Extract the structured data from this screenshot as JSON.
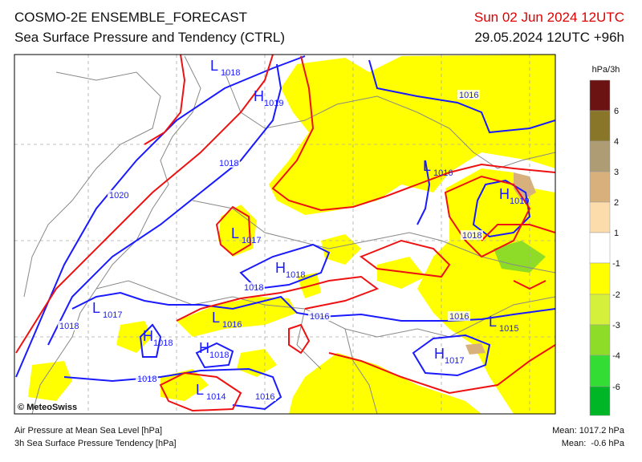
{
  "header": {
    "title": "COSMO-2E ENSEMBLE_FORECAST",
    "subtitle": "Sea Surface Pressure and Tendency (CTRL)",
    "valid_time": "Sun 02 Jun 2024 12UTC",
    "run": "29.05.2024 12UTC +96h"
  },
  "map": {
    "copyright": "© MeteoSwiss",
    "labels": [
      {
        "symbol": "L",
        "value": "1018"
      },
      {
        "symbol": "H",
        "value": "1019"
      },
      {
        "value": "1016"
      },
      {
        "value": "1018"
      },
      {
        "symbol": "L",
        "value": "1016"
      },
      {
        "value": "1020"
      },
      {
        "symbol": "H",
        "value": "1019"
      },
      {
        "value": "1018"
      },
      {
        "symbol": "L",
        "value": "1017"
      },
      {
        "symbol": "H",
        "value": "1018"
      },
      {
        "value": "1018"
      },
      {
        "symbol": "L",
        "value": "1017"
      },
      {
        "value": "1018"
      },
      {
        "symbol": "L",
        "value": "1016"
      },
      {
        "value": "1016"
      },
      {
        "value": "1016"
      },
      {
        "symbol": "L",
        "value": "1015"
      },
      {
        "symbol": "H",
        "value": "1018"
      },
      {
        "symbol": "H",
        "value": "1018"
      },
      {
        "symbol": "H",
        "value": "1017"
      },
      {
        "value": "1018"
      },
      {
        "symbol": "L",
        "value": "1014"
      },
      {
        "value": "1016"
      }
    ]
  },
  "legend": {
    "unit": "hPa/3h",
    "ticks": [
      "6",
      "4",
      "3",
      "2",
      "1",
      "-1",
      "-2",
      "-3",
      "-4",
      "-6"
    ],
    "colors": [
      "#6b1212",
      "#8a7628",
      "#ae9c74",
      "#d8b07c",
      "#fcdcaa",
      "#ffffff",
      "#ffff00",
      "#d4f03a",
      "#8fdc28",
      "#33dd33",
      "#00b526",
      "#008a33"
    ]
  },
  "footer": {
    "left": [
      "Air Pressure at Mean Sea Level [hPa]",
      "3h Sea Surface Pressure Tendency [hPa]"
    ],
    "right": [
      "Mean: 1017.2 hPa",
      "Mean:  -0.6 hPa"
    ]
  }
}
